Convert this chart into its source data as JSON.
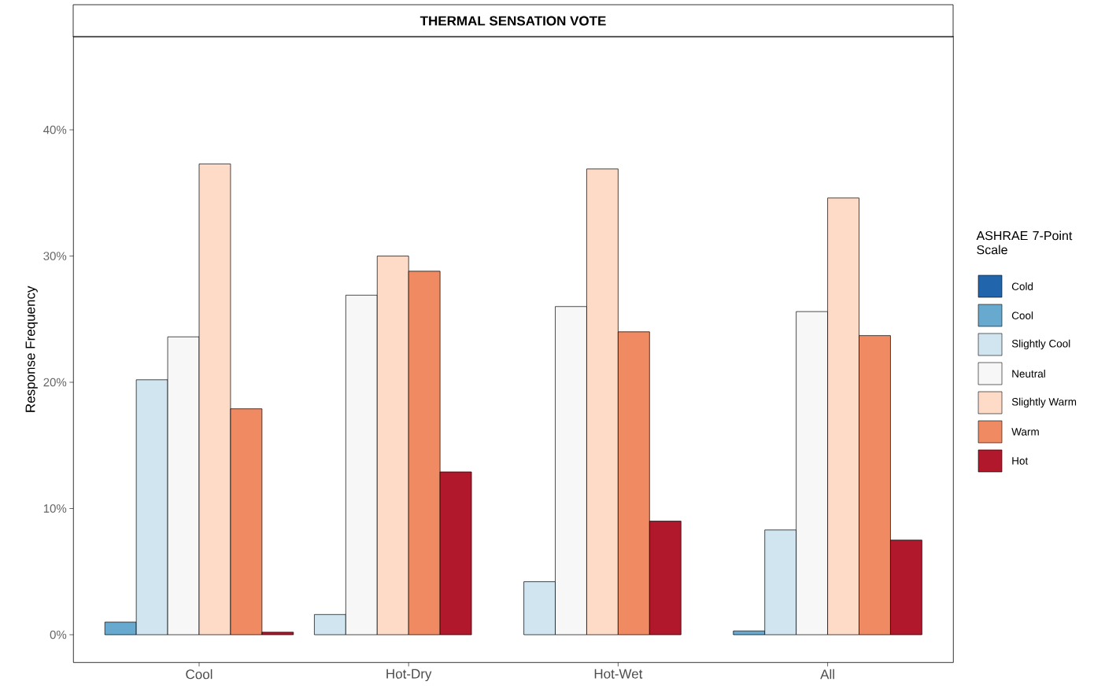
{
  "chart_data": {
    "type": "bar",
    "title": "THERMAL SENSATION VOTE",
    "ylabel": "Response Frequency",
    "legend_title": "ASHRAE 7-Point Scale",
    "legend": "right",
    "grid": false,
    "categories": [
      "Cool",
      "Hot-Dry",
      "Hot-Wet",
      "All"
    ],
    "ylim": [
      -2.2,
      47.4
    ],
    "yticks": [
      {
        "value": 0,
        "label": "0%"
      },
      {
        "value": 10,
        "label": "10%"
      },
      {
        "value": 20,
        "label": "20%"
      },
      {
        "value": 30,
        "label": "30%"
      },
      {
        "value": 40,
        "label": "40%"
      }
    ],
    "series": [
      {
        "name": "Cold",
        "color": "#2166ac",
        "values": [
          null,
          null,
          null,
          null
        ]
      },
      {
        "name": "Cool",
        "color": "#67a9cf",
        "values": [
          1.0,
          null,
          null,
          0.3
        ]
      },
      {
        "name": "Slightly Cool",
        "color": "#d1e5f0",
        "values": [
          20.2,
          1.6,
          4.2,
          8.3
        ]
      },
      {
        "name": "Neutral",
        "color": "#f7f7f7",
        "values": [
          23.6,
          26.9,
          26.0,
          25.6
        ]
      },
      {
        "name": "Slightly Warm",
        "color": "#fddbc7",
        "values": [
          37.3,
          30.0,
          36.9,
          34.6
        ]
      },
      {
        "name": "Warm",
        "color": "#ef8a62",
        "values": [
          17.9,
          28.8,
          24.0,
          23.7
        ]
      },
      {
        "name": "Hot",
        "color": "#b2182b",
        "values": [
          0.2,
          12.9,
          9.0,
          7.5
        ]
      }
    ]
  }
}
